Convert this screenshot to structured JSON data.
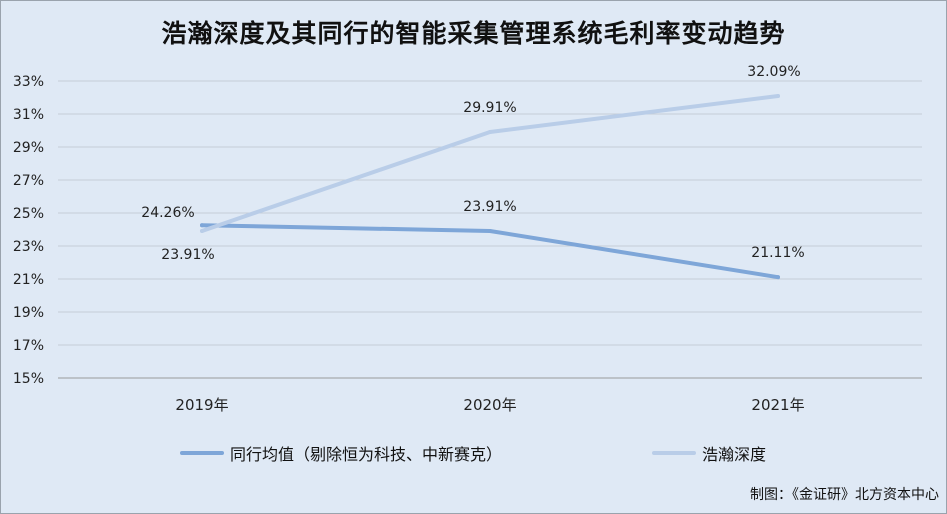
{
  "chart_data": {
    "type": "line",
    "title": "浩瀚深度及其同行的智能采集管理系统毛利率变动趋势",
    "categories": [
      "2019年",
      "2020年",
      "2021年"
    ],
    "ylim": [
      15,
      33
    ],
    "y_ticks": [
      15,
      17,
      19,
      21,
      23,
      25,
      27,
      29,
      31,
      33
    ],
    "y_tick_labels": [
      "15%",
      "17%",
      "19%",
      "21%",
      "23%",
      "25%",
      "27%",
      "29%",
      "31%",
      "33%"
    ],
    "grid": true,
    "legend_position": "bottom",
    "series": [
      {
        "name": "同行均值（剔除恒为科技、中新赛克）",
        "values": [
          24.26,
          23.91,
          21.11
        ],
        "labels": [
          "24.26%",
          "23.91%",
          "21.11%"
        ],
        "color": "#7ea6d8"
      },
      {
        "name": "浩瀚深度",
        "values": [
          23.91,
          29.91,
          32.09
        ],
        "labels": [
          "23.91%",
          "29.91%",
          "32.09%"
        ],
        "color": "#b9cde8"
      }
    ]
  },
  "credit": "制图：《金证研》北方资本中心"
}
